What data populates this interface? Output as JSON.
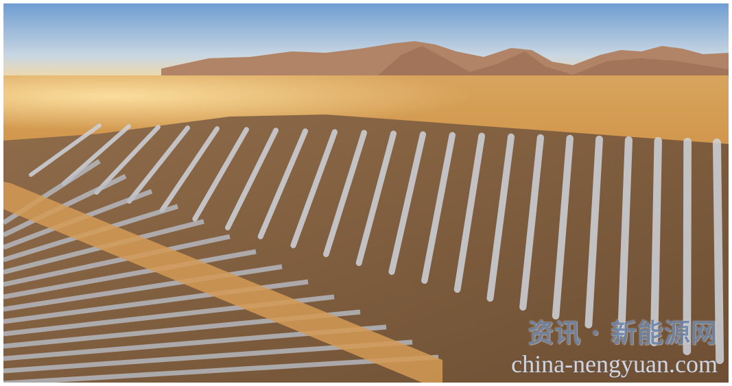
{
  "photo": {
    "subject": "solar-thermal-plant-aerial",
    "colors": {
      "sky_top": "#7fa7d6",
      "sky_horizon": "#f3d9a6",
      "desert": "#c98a3a",
      "mirror": "#c9cdd6"
    }
  },
  "watermark": {
    "title": "资讯 · 新能源网",
    "url": "china-nengyuan.com"
  }
}
